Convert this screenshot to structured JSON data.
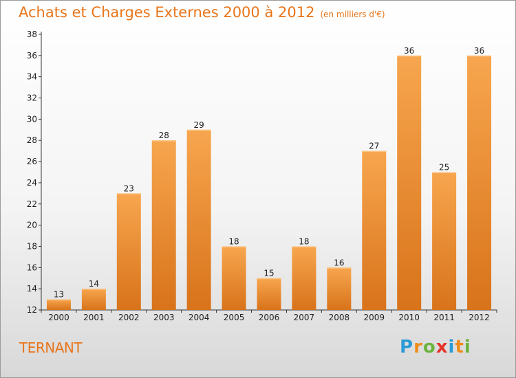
{
  "header": {
    "title": "Achats et Charges Externes 2000 à 2012",
    "unit": "(en milliers d'€)"
  },
  "footer": {
    "commune": "TERNANT",
    "logo_letters": [
      "P",
      "r",
      "o",
      "x",
      "i",
      "t",
      "i"
    ],
    "logo_colors": [
      "#2a9bd6",
      "#f08c1c",
      "#6cb33e",
      "#e5352b",
      "#2a9bd6",
      "#f08c1c",
      "#6cb33e"
    ]
  },
  "colors": {
    "bar_top": "#f7a64f",
    "bar_bottom": "#d8731a",
    "accent": "#e8751a"
  },
  "chart_data": {
    "type": "bar",
    "title": "Achats et Charges Externes 2000 à 2012",
    "subtitle": "(en milliers d'€)",
    "categories": [
      "2000",
      "2001",
      "2002",
      "2003",
      "2004",
      "2005",
      "2006",
      "2007",
      "2008",
      "2009",
      "2010",
      "2011",
      "2012"
    ],
    "values": [
      13,
      14,
      23,
      28,
      29,
      18,
      15,
      18,
      16,
      27,
      36,
      25,
      36
    ],
    "ylim": [
      12,
      38
    ],
    "yticks": [
      12,
      14,
      16,
      18,
      20,
      22,
      24,
      26,
      28,
      30,
      32,
      34,
      36,
      38
    ],
    "grid": false,
    "legend": "none"
  }
}
